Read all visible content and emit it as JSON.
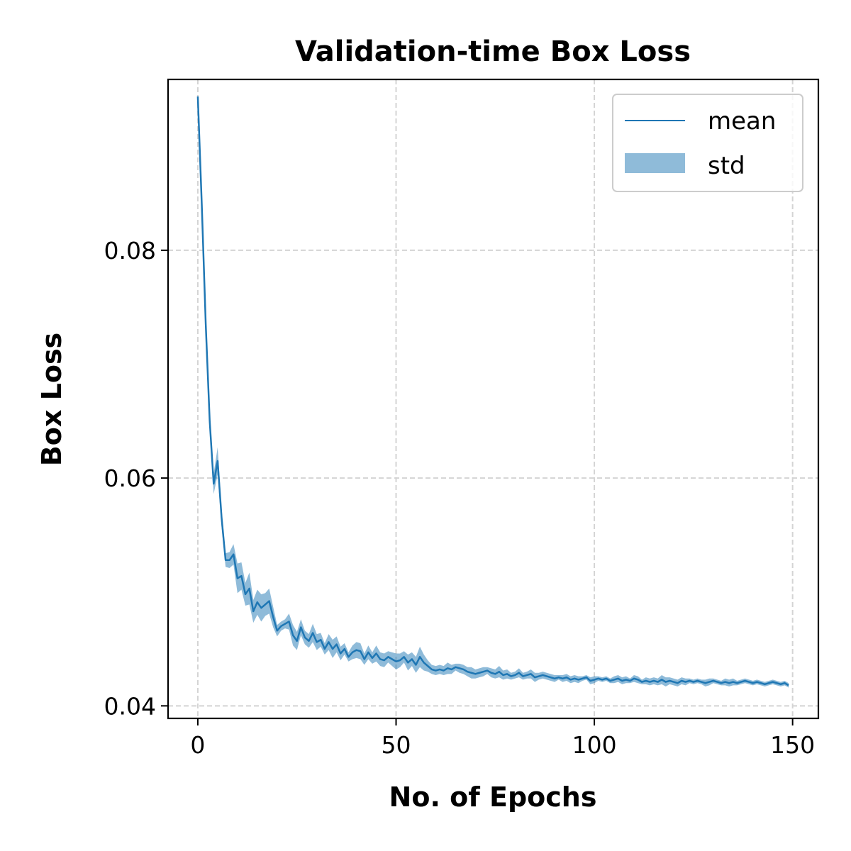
{
  "chart_data": {
    "type": "line",
    "title": "Validation-time Box Loss",
    "xlabel": "No. of Epochs",
    "ylabel": "Box Loss",
    "xlim": [
      -7.5,
      156.5
    ],
    "ylim": [
      0.0389,
      0.095
    ],
    "xticks": [
      0,
      50,
      100,
      150
    ],
    "xtick_labels": [
      "0",
      "50",
      "100",
      "150"
    ],
    "yticks": [
      0.04,
      0.06,
      0.08
    ],
    "ytick_labels": [
      "0.04",
      "0.06",
      "0.08"
    ],
    "grid": true,
    "legend_placement": "top-right",
    "series": [
      {
        "name": "mean",
        "kind": "line",
        "color": "#1f77b4"
      },
      {
        "name": "std",
        "kind": "band",
        "color": "#1f77b4",
        "alpha": 0.5
      }
    ],
    "x": [
      0,
      1,
      2,
      3,
      4,
      5,
      6,
      7,
      8,
      9,
      10,
      11,
      12,
      13,
      14,
      15,
      16,
      17,
      18,
      19,
      20,
      21,
      22,
      23,
      24,
      25,
      26,
      27,
      28,
      29,
      30,
      31,
      32,
      33,
      34,
      35,
      36,
      37,
      38,
      39,
      40,
      41,
      42,
      43,
      44,
      45,
      46,
      47,
      48,
      49,
      50,
      51,
      52,
      53,
      54,
      55,
      56,
      57,
      58,
      59,
      60,
      61,
      62,
      63,
      64,
      65,
      66,
      67,
      68,
      69,
      70,
      71,
      72,
      73,
      74,
      75,
      76,
      77,
      78,
      79,
      80,
      81,
      82,
      83,
      84,
      85,
      86,
      87,
      88,
      89,
      90,
      91,
      92,
      93,
      94,
      95,
      96,
      97,
      98,
      99,
      100,
      101,
      102,
      103,
      104,
      105,
      106,
      107,
      108,
      109,
      110,
      111,
      112,
      113,
      114,
      115,
      116,
      117,
      118,
      119,
      120,
      121,
      122,
      123,
      124,
      125,
      126,
      127,
      128,
      129,
      130,
      131,
      132,
      133,
      134,
      135,
      136,
      137,
      138,
      139,
      140,
      141,
      142,
      143,
      144,
      145,
      146,
      147,
      148,
      149
    ],
    "mean": [
      0.0935,
      0.084,
      0.0735,
      0.065,
      0.0595,
      0.0615,
      0.0565,
      0.0528,
      0.0528,
      0.0533,
      0.0512,
      0.0514,
      0.0498,
      0.0503,
      0.0483,
      0.0491,
      0.0486,
      0.0489,
      0.0492,
      0.0478,
      0.0466,
      0.047,
      0.0472,
      0.0474,
      0.0462,
      0.0457,
      0.0469,
      0.046,
      0.0457,
      0.0464,
      0.0456,
      0.0458,
      0.045,
      0.0456,
      0.045,
      0.0454,
      0.0446,
      0.045,
      0.0443,
      0.0447,
      0.0449,
      0.0448,
      0.0441,
      0.0447,
      0.0442,
      0.0446,
      0.0441,
      0.044,
      0.0443,
      0.0441,
      0.0439,
      0.044,
      0.0443,
      0.0438,
      0.0441,
      0.0436,
      0.0443,
      0.0438,
      0.0435,
      0.0432,
      0.0431,
      0.0432,
      0.0431,
      0.0433,
      0.0432,
      0.0434,
      0.0433,
      0.0432,
      0.043,
      0.0429,
      0.0428,
      0.0429,
      0.043,
      0.0431,
      0.0429,
      0.0428,
      0.043,
      0.0427,
      0.0428,
      0.0426,
      0.0427,
      0.0429,
      0.0426,
      0.0427,
      0.0428,
      0.0425,
      0.0426,
      0.0427,
      0.0426,
      0.0425,
      0.0424,
      0.0425,
      0.0424,
      0.0425,
      0.0423,
      0.0424,
      0.0423,
      0.0424,
      0.0425,
      0.0422,
      0.0423,
      0.0424,
      0.0423,
      0.0424,
      0.0422,
      0.0423,
      0.0424,
      0.0422,
      0.0423,
      0.0422,
      0.0424,
      0.0423,
      0.0421,
      0.0422,
      0.0421,
      0.0422,
      0.0421,
      0.0423,
      0.0421,
      0.0422,
      0.0421,
      0.042,
      0.0422,
      0.0421,
      0.0422,
      0.0421,
      0.0422,
      0.0421,
      0.042,
      0.0421,
      0.0422,
      0.0421,
      0.042,
      0.0421,
      0.042,
      0.0421,
      0.042,
      0.0421,
      0.0422,
      0.0421,
      0.042,
      0.0421,
      0.042,
      0.0419,
      0.042,
      0.0421,
      0.042,
      0.0419,
      0.042,
      0.0418
    ],
    "std": [
      0.0001,
      0.0002,
      0.0002,
      0.0005,
      0.0009,
      0.0012,
      0.0008,
      0.0006,
      0.0007,
      0.0009,
      0.0013,
      0.0012,
      0.001,
      0.0014,
      0.001,
      0.0011,
      0.0012,
      0.001,
      0.0011,
      0.0009,
      0.0005,
      0.0004,
      0.0004,
      0.0007,
      0.0009,
      0.0008,
      0.0007,
      0.0006,
      0.0006,
      0.0008,
      0.0007,
      0.0006,
      0.0005,
      0.0007,
      0.0008,
      0.0007,
      0.0006,
      0.0005,
      0.0004,
      0.0006,
      0.0007,
      0.0007,
      0.0005,
      0.0006,
      0.0005,
      0.0007,
      0.0006,
      0.0006,
      0.0005,
      0.0006,
      0.0007,
      0.0006,
      0.0005,
      0.0007,
      0.0006,
      0.0007,
      0.0009,
      0.0007,
      0.0005,
      0.0004,
      0.0004,
      0.0004,
      0.0004,
      0.0005,
      0.0004,
      0.0003,
      0.0004,
      0.0004,
      0.0004,
      0.0005,
      0.0004,
      0.0004,
      0.0004,
      0.0003,
      0.0004,
      0.0004,
      0.0005,
      0.0004,
      0.0004,
      0.0003,
      0.0003,
      0.0004,
      0.0003,
      0.0003,
      0.0004,
      0.0004,
      0.0003,
      0.0003,
      0.0003,
      0.0003,
      0.0003,
      0.0002,
      0.0003,
      0.0003,
      0.0003,
      0.0003,
      0.0003,
      0.0002,
      0.0002,
      0.0003,
      0.0003,
      0.0002,
      0.0002,
      0.0002,
      0.0002,
      0.0003,
      0.0003,
      0.0003,
      0.0003,
      0.0002,
      0.0003,
      0.0003,
      0.0002,
      0.0003,
      0.0003,
      0.0003,
      0.0003,
      0.0004,
      0.0004,
      0.0003,
      0.0003,
      0.0003,
      0.0003,
      0.0003,
      0.0002,
      0.0002,
      0.0002,
      0.0002,
      0.0003,
      0.0003,
      0.0002,
      0.0002,
      0.0002,
      0.0003,
      0.0003,
      0.0003,
      0.0002,
      0.0002,
      0.0002,
      0.0002,
      0.0002,
      0.0002,
      0.0002,
      0.0002,
      0.0002,
      0.0002,
      0.0002,
      0.0002,
      0.0002,
      0.0002
    ]
  }
}
